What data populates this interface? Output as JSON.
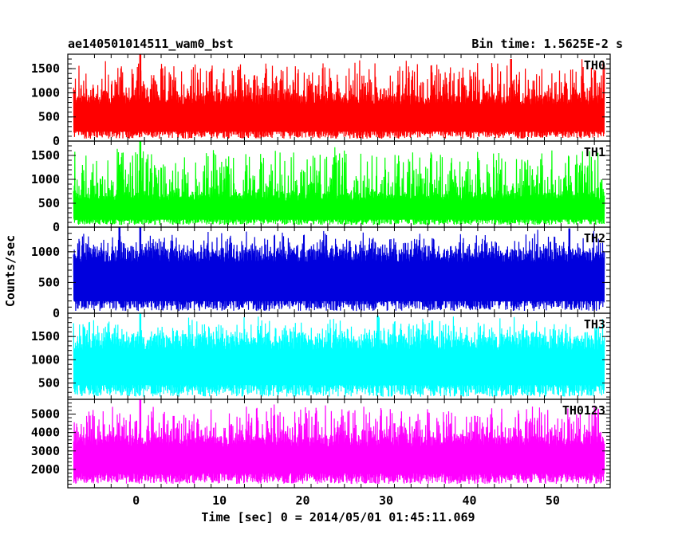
{
  "chart_data": {
    "type": "line",
    "title": "ae140501014511_wam0_bst",
    "subtitle": "Bin time: 1.5625E-2 s",
    "xlabel": "Time [sec] 0 = 2014/05/01 01:45:11.069",
    "ylabel": "Counts/sec",
    "xlim": [
      -8.2,
      56.9
    ],
    "x_ticks": [
      0,
      10,
      20,
      30,
      40,
      50
    ],
    "x_range_data": [
      -7.5,
      56.2
    ],
    "grid": false,
    "panels": [
      {
        "name": "TH0",
        "color": "#ff0000",
        "ylim": [
          0,
          1800
        ],
        "y_ticks": [
          0,
          500,
          1000,
          1500
        ],
        "typical_low": 150,
        "typical_high": 950,
        "peak": 1800,
        "spikes": [
          {
            "x": 0.5,
            "y": 1800
          },
          {
            "x": 9.0,
            "y": 1450
          },
          {
            "x": 45.0,
            "y": 1700
          }
        ]
      },
      {
        "name": "TH1",
        "color": "#00ff00",
        "ylim": [
          0,
          1800
        ],
        "y_ticks": [
          0,
          500,
          1000,
          1500
        ],
        "typical_low": 120,
        "typical_high": 700,
        "peak": 1800,
        "spikes": [
          {
            "x": 0.5,
            "y": 1800
          },
          {
            "x": -2.0,
            "y": 1300
          },
          {
            "x": 24.0,
            "y": 1350
          }
        ]
      },
      {
        "name": "TH2",
        "color": "#0000dd",
        "ylim": [
          0,
          1400
        ],
        "y_ticks": [
          0,
          500,
          1000
        ],
        "typical_low": 150,
        "typical_high": 1050,
        "peak": 1400,
        "spikes": [
          {
            "x": -2.0,
            "y": 1400
          },
          {
            "x": 0.5,
            "y": 1400
          },
          {
            "x": 52.0,
            "y": 1380
          }
        ]
      },
      {
        "name": "TH3",
        "color": "#00ffff",
        "ylim": [
          150,
          2000
        ],
        "y_ticks": [
          500,
          1000,
          1500
        ],
        "typical_low": 350,
        "typical_high": 1500,
        "peak": 2000,
        "spikes": [
          {
            "x": 0.5,
            "y": 2000
          },
          {
            "x": 29.0,
            "y": 1950
          }
        ]
      },
      {
        "name": "TH0123",
        "color": "#ff00ff",
        "ylim": [
          1000,
          5800
        ],
        "y_ticks": [
          2000,
          3000,
          4000,
          5000
        ],
        "typical_low": 1500,
        "typical_high": 3800,
        "peak": 5800,
        "spikes": [
          {
            "x": 0.5,
            "y": 5800
          },
          {
            "x": 4.5,
            "y": 4900
          },
          {
            "x": 31.0,
            "y": 4500
          }
        ]
      }
    ]
  }
}
